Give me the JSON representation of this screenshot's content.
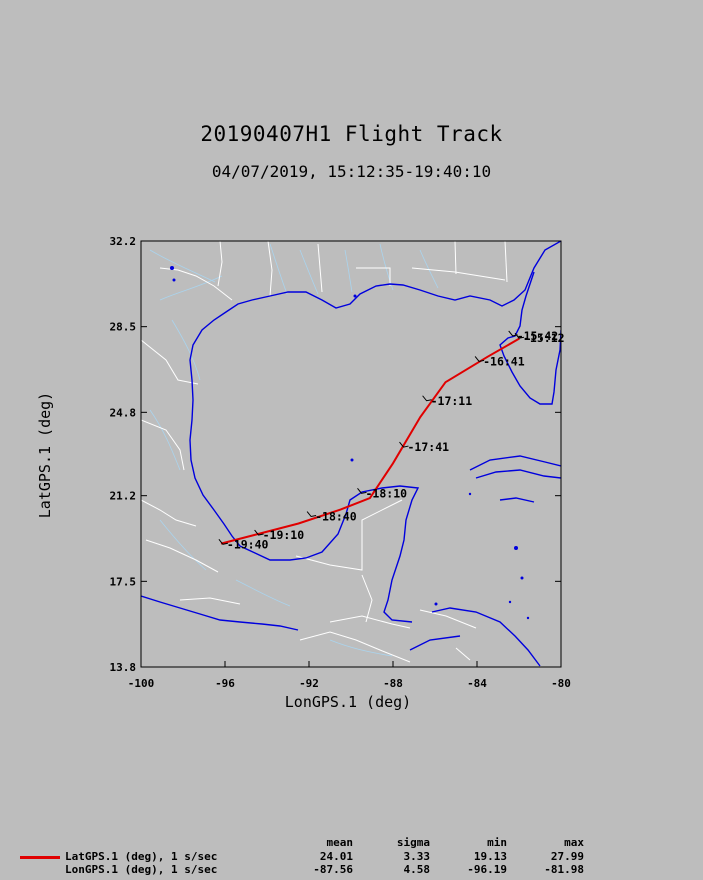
{
  "title": "20190407H1 Flight Track",
  "subtitle": "04/07/2019, 15:12:35-19:40:10",
  "chart_data": {
    "type": "line",
    "xlabel": "LonGPS.1 (deg)",
    "ylabel": "LatGPS.1 (deg)",
    "xlim": [
      -100,
      -80
    ],
    "ylim": [
      13.8,
      32.2
    ],
    "x_ticks": [
      "-100",
      "-96",
      "-92",
      "-88",
      "-84",
      "-80"
    ],
    "x_tick_values": [
      -100,
      -96,
      -92,
      -88,
      -84,
      -80
    ],
    "y_ticks": [
      "32.2",
      "28.5",
      "24.8",
      "21.2",
      "17.5",
      "13.8"
    ],
    "y_tick_values": [
      32.2,
      28.5,
      24.8,
      21.2,
      17.5,
      13.8
    ],
    "track_color": "#e00000",
    "coast_color": "#0000dd",
    "border_color": "#ffffff",
    "river_color": "#aad4ee",
    "track": [
      {
        "lon": -81.98,
        "lat": 27.99
      },
      {
        "lon": -83.5,
        "lat": 27.2
      },
      {
        "lon": -85.5,
        "lat": 26.1
      },
      {
        "lon": -86.7,
        "lat": 24.6
      },
      {
        "lon": -88.0,
        "lat": 22.6
      },
      {
        "lon": -89.1,
        "lat": 21.1
      },
      {
        "lon": -90.5,
        "lat": 20.6
      },
      {
        "lon": -92.5,
        "lat": 20.0
      },
      {
        "lon": -96.19,
        "lat": 19.13
      }
    ],
    "time_labels": [
      {
        "text": "15:12",
        "lon": -82.0,
        "lat": 28.0
      },
      {
        "text": "15:42",
        "lon": -82.3,
        "lat": 28.1
      },
      {
        "text": "16:41",
        "lon": -83.9,
        "lat": 27.0
      },
      {
        "text": "17:11",
        "lon": -86.4,
        "lat": 25.3
      },
      {
        "text": "17:41",
        "lon": -87.5,
        "lat": 23.3
      },
      {
        "text": "18:10",
        "lon": -89.5,
        "lat": 21.3
      },
      {
        "text": "18:40",
        "lon": -91.9,
        "lat": 20.3
      },
      {
        "text": "19:10",
        "lon": -94.4,
        "lat": 19.5
      },
      {
        "text": "19:40",
        "lon": -96.1,
        "lat": 19.1
      }
    ]
  },
  "stats": {
    "headers": [
      "mean",
      "sigma",
      "min",
      "max"
    ],
    "rows": [
      {
        "label": "LatGPS.1 (deg), 1 s/sec",
        "values": [
          "24.01",
          "3.33",
          "19.13",
          "27.99"
        ],
        "color": "#e00000"
      },
      {
        "label": "LonGPS.1 (deg), 1 s/sec",
        "values": [
          "-87.56",
          "4.58",
          "-96.19",
          "-81.98"
        ],
        "color": ""
      }
    ]
  }
}
